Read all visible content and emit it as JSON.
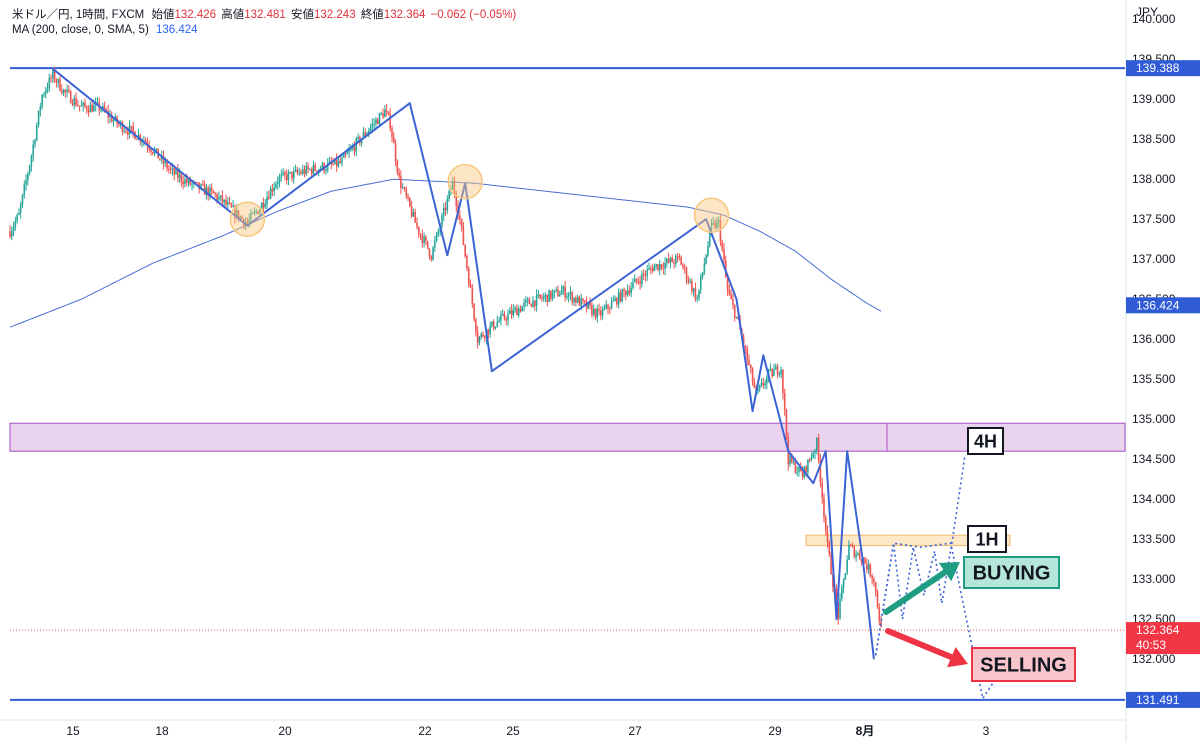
{
  "header": {
    "symbol": "米ドル／円, 1時間, FXCM",
    "open_label": "始値",
    "open_value": "132.426",
    "high_label": "高値",
    "high_value": "132.481",
    "low_label": "安値",
    "low_value": "132.243",
    "close_label": "終値",
    "close_value": "132.364",
    "change": "−0.062 (−0.05%)",
    "ma_label": "MA (200, close, 0, SMA, 5)",
    "ma_value": "136.424"
  },
  "colors": {
    "up": "#26a69a",
    "down": "#ef5350",
    "ma": "#4a6fd6",
    "zigzag": "#3c63d6",
    "level_line": "#2f5bd6",
    "zone_4h_fill": "#e9d3ee",
    "zone_4h_border": "#a64fc2",
    "zone_1h_fill": "#fde9c8",
    "zone_1h_border": "#f0b869",
    "circle": "#f8c77e",
    "buy_arrow": "#1f9d83",
    "sell_arrow": "#ee3345",
    "buying_bg": "#b6e6d9",
    "selling_bg": "#f9c5cc"
  },
  "chart_data": {
    "type": "candlestick",
    "timeframe": "1時間",
    "axis_currency": "JPY",
    "y_axis_labels": [
      "140.000",
      "139.500",
      "139.000",
      "138.500",
      "138.000",
      "137.500",
      "137.000",
      "136.500",
      "136.000",
      "135.500",
      "135.000",
      "134.500",
      "134.000",
      "133.500",
      "133.000",
      "132.500",
      "132.000"
    ],
    "y_range": [
      131.35,
      140.1
    ],
    "x_axis_labels": [
      "15",
      "18",
      "20",
      "22",
      "25",
      "27",
      "29",
      "8月",
      "3"
    ],
    "price_path": [
      [
        0,
        137.35
      ],
      [
        5,
        137.55
      ],
      [
        12,
        138.3
      ],
      [
        18,
        139.05
      ],
      [
        24,
        139.3
      ],
      [
        30,
        139.1
      ],
      [
        40,
        138.9
      ],
      [
        50,
        138.9
      ],
      [
        60,
        138.7
      ],
      [
        75,
        138.5
      ],
      [
        90,
        138.1
      ],
      [
        100,
        137.95
      ],
      [
        115,
        137.8
      ],
      [
        125,
        137.6
      ],
      [
        133,
        137.45
      ],
      [
        140,
        137.65
      ],
      [
        150,
        138.0
      ],
      [
        165,
        138.1
      ],
      [
        185,
        138.2
      ],
      [
        200,
        138.6
      ],
      [
        210,
        138.85
      ],
      [
        213,
        138.7
      ],
      [
        218,
        138.0
      ],
      [
        228,
        137.4
      ],
      [
        236,
        137.05
      ],
      [
        248,
        137.95
      ],
      [
        252,
        137.5
      ],
      [
        262,
        136.0
      ],
      [
        272,
        136.2
      ],
      [
        290,
        136.45
      ],
      [
        310,
        136.6
      ],
      [
        330,
        136.3
      ],
      [
        345,
        136.6
      ],
      [
        360,
        136.9
      ],
      [
        375,
        137.0
      ],
      [
        385,
        136.5
      ],
      [
        393,
        137.4
      ],
      [
        397,
        137.45
      ],
      [
        402,
        136.6
      ],
      [
        408,
        136.2
      ],
      [
        418,
        135.3
      ],
      [
        425,
        135.55
      ],
      [
        432,
        135.65
      ],
      [
        436,
        134.5
      ],
      [
        444,
        134.3
      ],
      [
        452,
        134.7
      ],
      [
        458,
        133.4
      ],
      [
        464,
        132.55
      ],
      [
        470,
        133.4
      ],
      [
        478,
        133.25
      ],
      [
        484,
        133.0
      ],
      [
        488,
        132.36
      ]
    ],
    "ma_200": [
      [
        0,
        136.15
      ],
      [
        40,
        136.5
      ],
      [
        80,
        136.95
      ],
      [
        120,
        137.3
      ],
      [
        150,
        137.6
      ],
      [
        180,
        137.85
      ],
      [
        215,
        138.0
      ],
      [
        260,
        137.95
      ],
      [
        300,
        137.85
      ],
      [
        340,
        137.75
      ],
      [
        380,
        137.65
      ],
      [
        400,
        137.55
      ],
      [
        420,
        137.35
      ],
      [
        440,
        137.1
      ],
      [
        460,
        136.75
      ],
      [
        480,
        136.45
      ],
      [
        488,
        136.35
      ]
    ],
    "current_price": {
      "value": "132.364",
      "countdown": "40:53"
    },
    "horizontal_levels": [
      {
        "value": "139.388",
        "price": 139.388
      },
      {
        "value": "131.491",
        "price": 131.491
      }
    ],
    "zones": [
      {
        "label": "4H",
        "top": 134.95,
        "bottom": 134.6
      },
      {
        "label": "1H",
        "top": 133.55,
        "bottom": 133.42
      }
    ],
    "swing_zigzag": [
      [
        24,
        139.38
      ],
      [
        133,
        137.42
      ],
      [
        224,
        138.95
      ],
      [
        245,
        137.05
      ],
      [
        255,
        137.95
      ],
      [
        270,
        135.6
      ],
      [
        390,
        137.5
      ],
      [
        407,
        136.5
      ],
      [
        416,
        135.1
      ],
      [
        422,
        135.8
      ],
      [
        436,
        134.6
      ],
      [
        450,
        134.2
      ],
      [
        457,
        134.6
      ],
      [
        463,
        132.5
      ],
      [
        469,
        134.6
      ],
      [
        478,
        133.2
      ],
      [
        484,
        132.0
      ]
    ],
    "marked_points": [
      [
        133,
        137.5
      ],
      [
        255,
        137.97
      ],
      [
        393,
        137.55
      ]
    ],
    "scenario_buy_path": [
      [
        485,
        132.05
      ],
      [
        495,
        133.45
      ],
      [
        500,
        132.5
      ],
      [
        506,
        133.4
      ],
      [
        512,
        132.8
      ],
      [
        518,
        133.35
      ],
      [
        522,
        132.7
      ],
      [
        528,
        133.5
      ],
      [
        535,
        134.55
      ]
    ],
    "scenario_sell_path": [
      [
        485,
        132.05
      ],
      [
        495,
        133.45
      ],
      [
        510,
        133.4
      ],
      [
        527,
        133.45
      ],
      [
        545,
        131.51
      ],
      [
        555,
        131.85
      ]
    ],
    "annotations": [
      "4H",
      "1H",
      "BUYING",
      "SELLING"
    ]
  }
}
